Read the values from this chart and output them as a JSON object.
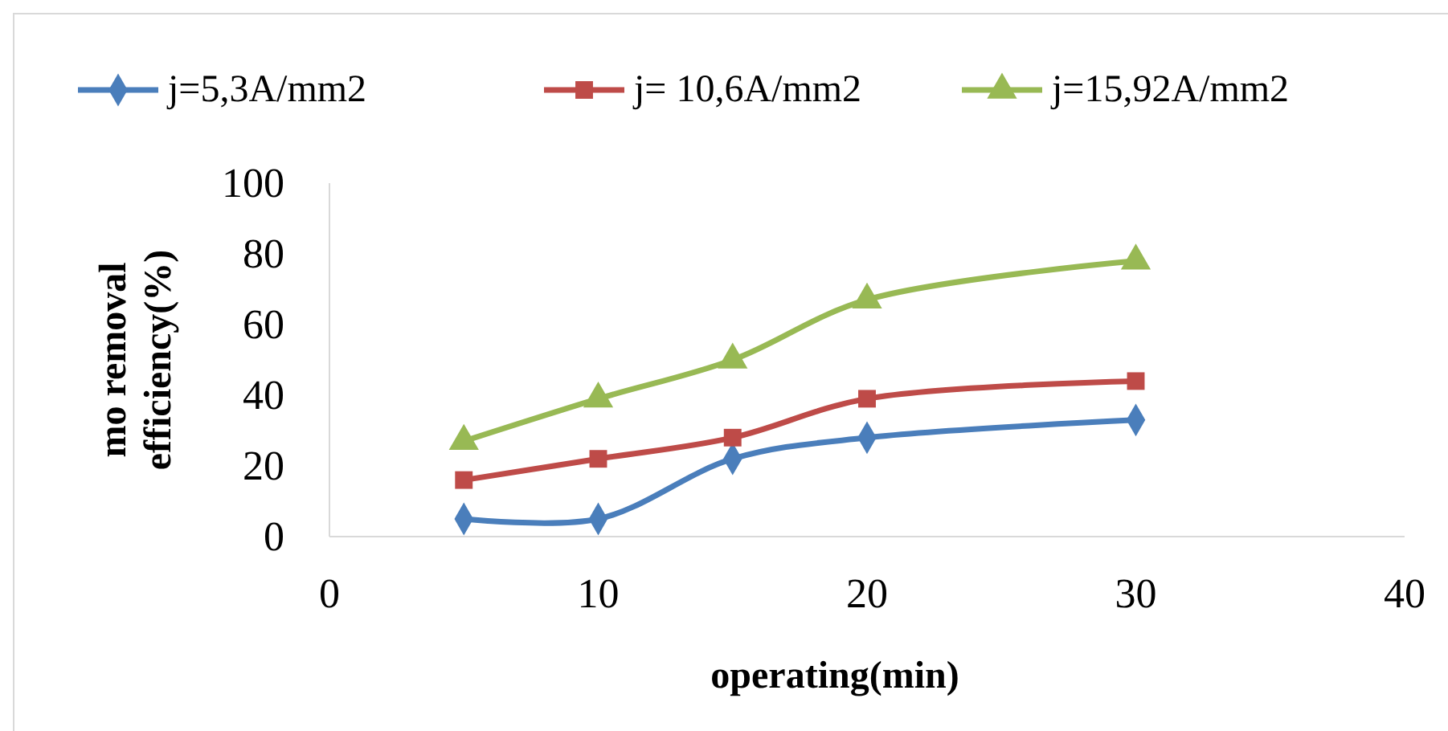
{
  "chart_data": {
    "type": "line",
    "xlabel": "operating(min)",
    "ylabel": "mo removal efficiency(%)",
    "x": [
      5,
      10,
      15,
      20,
      30
    ],
    "xlim": [
      0,
      40
    ],
    "xticks": [
      0,
      10,
      20,
      30,
      40
    ],
    "ylim": [
      0,
      100
    ],
    "yticks": [
      0,
      20,
      40,
      60,
      80,
      100
    ],
    "grid": false,
    "legend": "top",
    "line_style": "solid",
    "series": [
      {
        "name": "j=5,3A/mm2",
        "color": "#4a7ebb",
        "marker": "diamond",
        "values": [
          5,
          5,
          22,
          28,
          33
        ]
      },
      {
        "name": "j= 10,6A/mm2",
        "color": "#be4b48",
        "marker": "square",
        "values": [
          16,
          22,
          28,
          39,
          44
        ]
      },
      {
        "name": "j=15,92A/mm2",
        "color": "#98b954",
        "marker": "triangle",
        "values": [
          27,
          39,
          50,
          67,
          78
        ]
      }
    ]
  }
}
